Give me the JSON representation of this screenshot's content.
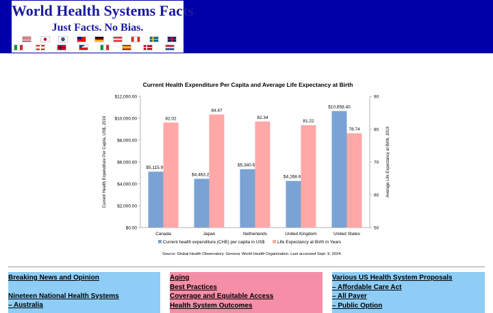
{
  "header": {
    "title": "World Health Systems Facts",
    "tagline": "Just Facts. No Bias.",
    "flags_row1": [
      "us-flag",
      "japan-flag",
      "south-korea-flag",
      "taiwan-flag",
      "germany-flag",
      "austria-flag",
      "canada-flag",
      "sweden-flag",
      "uk-flag"
    ],
    "flags_row2": [
      "italy-flag",
      "switzerland-flag",
      "norway-flag",
      "czech-flag",
      "italy-flag",
      "spain-flag",
      "denmark-flag",
      "netherlands-flag"
    ]
  },
  "chart_data": {
    "type": "bar",
    "title": "Current Health Expenditure Per Capita and Average Life Expectancy at Birth",
    "categories": [
      "Canada",
      "Japan",
      "Netherlands",
      "United Kingdom",
      "United States"
    ],
    "series": [
      {
        "name": "Current health expenditure (CHE) per capita in US$",
        "axis": "left",
        "color": "#7aa3d4",
        "values": [
          5115.98,
          4463.28,
          5340.61,
          4268.68,
          10658.4
        ],
        "labels": [
          "$5,115.98",
          "$4,463.28",
          "$5,340.61",
          "$4,268.68",
          "$10,658.40"
        ]
      },
      {
        "name": "Life Expectancy at Birth in Years",
        "axis": "right",
        "color": "#ffa8a8",
        "values": [
          82.02,
          84.47,
          82.34,
          81.22,
          78.74
        ],
        "labels": [
          "82.02",
          "84.47",
          "82.34",
          "81.22",
          "78.74"
        ]
      }
    ],
    "ylabel": "Current Health Expenditure Per Capita, US$, 2019",
    "y2label": "Average Life Expectancy at Birth, 2019",
    "ylim": [
      0,
      12000
    ],
    "y2lim": [
      50,
      90
    ],
    "yticks": [
      "$0.00",
      "$2,000.00",
      "$4,000.00",
      "$6,000.00",
      "$8,000.00",
      "$10,000.00",
      "$12,000.00"
    ],
    "y2ticks": [
      "50",
      "60",
      "70",
      "80",
      "90"
    ],
    "legend_position": "bottom",
    "source": "Source: Global Health Observatory. Geneva: World Health Organization. Last accessed Sept. 9, 2024.",
    "grid": false
  },
  "menus": {
    "col1": {
      "color": "#8ecdf5",
      "items": [
        "Breaking News and Opinion",
        "",
        "Nineteen National Health Systems",
        "– Australia"
      ]
    },
    "col2": {
      "color": "#f58fa8",
      "items": [
        "Aging",
        "Best Practices",
        "Coverage and Equitable Access",
        "Health System Outcomes"
      ]
    },
    "col3": {
      "color": "#8ecdf5",
      "items": [
        "Various US Health System Proposals",
        "– Affordable Care Act",
        "– All Payer",
        "– Public Option"
      ]
    }
  }
}
